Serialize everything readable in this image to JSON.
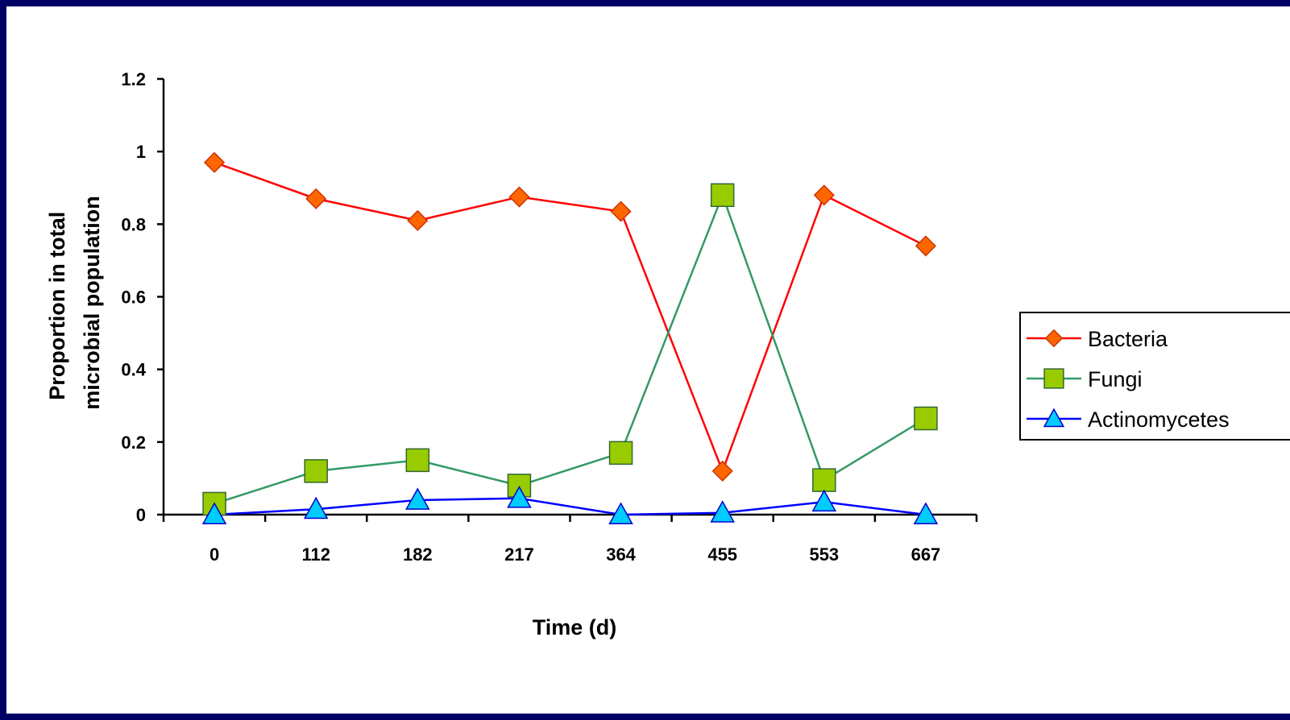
{
  "chart_data": {
    "type": "line",
    "x": [
      "0",
      "112",
      "182",
      "217",
      "364",
      "455",
      "553",
      "667"
    ],
    "xlabel": "Time (d)",
    "ylabel_lines": [
      "Proportion in total",
      "microbial population"
    ],
    "ylim": [
      0,
      1.2
    ],
    "yticks": [
      "0",
      "0.2",
      "0.4",
      "0.6",
      "0.8",
      "1",
      "1.2"
    ],
    "grid": false,
    "legend_position": "right",
    "series": [
      {
        "name": "Bacteria",
        "color": "#ff0000",
        "marker": "diamond",
        "marker_fill": "#ff6600",
        "values": [
          0.97,
          0.87,
          0.81,
          0.875,
          0.835,
          0.12,
          0.88,
          0.74
        ]
      },
      {
        "name": "Fungi",
        "color": "#339966",
        "marker": "square",
        "marker_fill": "#99cc00",
        "values": [
          0.03,
          0.12,
          0.15,
          0.08,
          0.17,
          0.88,
          0.095,
          0.265
        ]
      },
      {
        "name": "Actinomycetes",
        "color": "#0000ff",
        "marker": "triangle",
        "marker_fill": "#00ccff",
        "values": [
          0.0,
          0.015,
          0.04,
          0.045,
          0.0,
          0.005,
          0.035,
          0.0
        ]
      }
    ]
  }
}
